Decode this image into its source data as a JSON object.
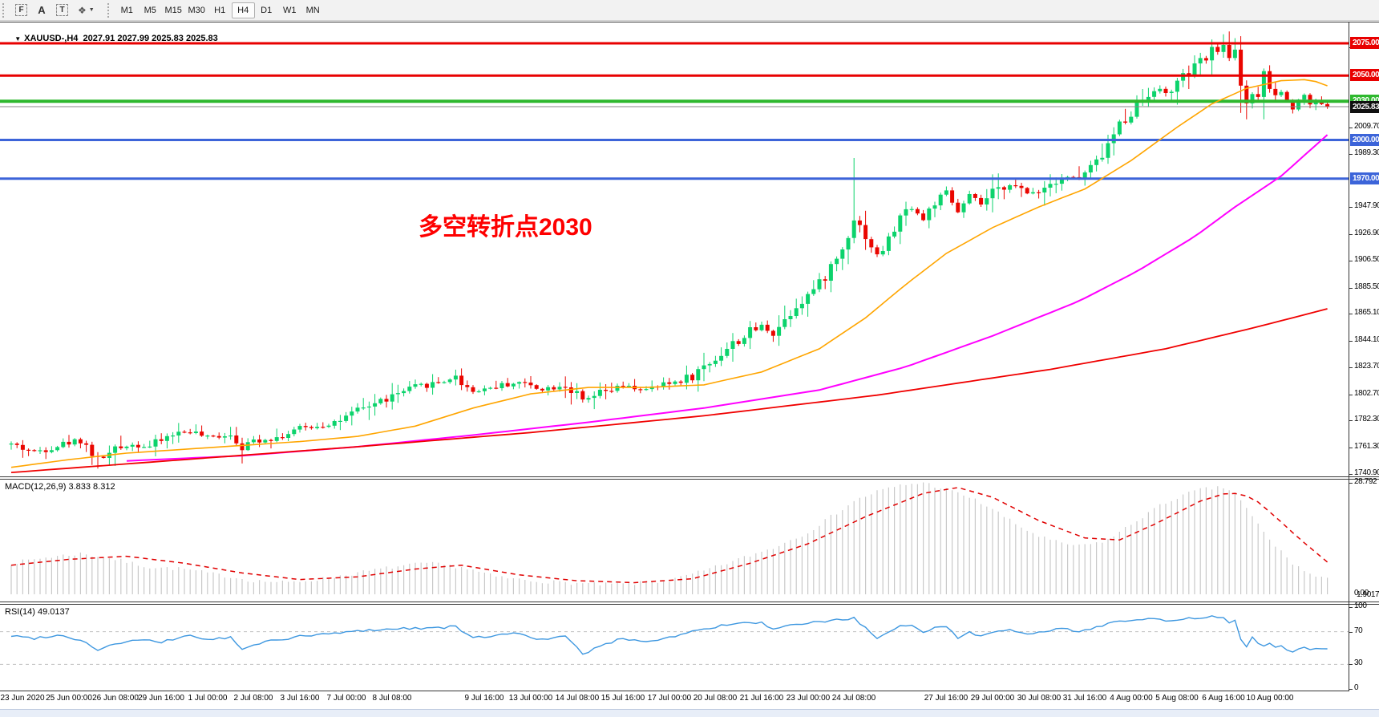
{
  "toolbar": {
    "tools": {
      "f": "F",
      "a": "A",
      "t": "T",
      "shapes": "❖",
      "caret": "▼"
    },
    "timeframes": [
      "M1",
      "M5",
      "M15",
      "M30",
      "H1",
      "H4",
      "D1",
      "W1",
      "MN"
    ],
    "active_timeframe": "H4"
  },
  "header": {
    "caret": "▼",
    "symbol": "XAUUSD-,H4",
    "ohlc": "2027.91 2027.99 2025.83 2025.83"
  },
  "annotation": {
    "text": "多空转折点2030",
    "color": "#fe0000"
  },
  "indicators": {
    "macd_label": "MACD(12,26,9) 3.833 8.312",
    "rsi_label": "RSI(14) 49.0137"
  },
  "chart_data": {
    "type": "candlestick",
    "symbol": "XAUUSD-",
    "timeframe": "H4",
    "ohlc_display": {
      "open": 2027.91,
      "high": 2027.99,
      "low": 2025.83,
      "close": 2025.83
    },
    "colors": {
      "up": "#0cd36c",
      "down": "#ea0600",
      "ma_fast": "#ffa500",
      "ma_mid": "#ff00ff",
      "ma_slow": "#f00000",
      "level_red": "#e80000",
      "level_green": "#2eb82e",
      "level_blue": "#3c64d9",
      "price_line": "#888888",
      "price_badge": "#101010",
      "macd_hist": "#c9c9c9",
      "macd_signal": "#e00000",
      "rsi_line": "#3d97e0",
      "rsi_grid": "#c0c0c0"
    },
    "levels": [
      {
        "value": 2075.0,
        "label": "2075.00",
        "color": "#e80000",
        "width": 3
      },
      {
        "value": 2050.0,
        "label": "2050.00",
        "color": "#e80000",
        "width": 3
      },
      {
        "value": 2030.0,
        "label": "2030.00",
        "color": "#2eb82e",
        "width": 4
      },
      {
        "value": 2000.0,
        "label": "2000.00",
        "color": "#3c64d9",
        "width": 3
      },
      {
        "value": 1970.0,
        "label": "1970.00",
        "color": "#3c64d9",
        "width": 3
      }
    ],
    "current_price": {
      "value": 2025.83,
      "label": "2025.83"
    },
    "y_ticks": [
      "2072.10",
      "2009.70",
      "1989.30",
      "1947.90",
      "1926.90",
      "1906.50",
      "1885.50",
      "1865.10",
      "1844.10",
      "1823.70",
      "1802.70",
      "1782.30",
      "1761.30",
      "1740.90"
    ],
    "date_labels": [
      [
        0,
        "23 Jun 2020"
      ],
      [
        1,
        "25 Jun 00:00"
      ],
      [
        2,
        "26 Jun 08:00"
      ],
      [
        3,
        "29 Jun 16:00"
      ],
      [
        4,
        "1 Jul 00:00"
      ],
      [
        5,
        "2 Jul 08:00"
      ],
      [
        6,
        "3 Jul 16:00"
      ],
      [
        7,
        "7 Jul 00:00"
      ],
      [
        8,
        "8 Jul 08:00"
      ],
      [
        10,
        "9 Jul 16:00"
      ],
      [
        11,
        "13 Jul 00:00"
      ],
      [
        12,
        "14 Jul 08:00"
      ],
      [
        13,
        "15 Jul 16:00"
      ],
      [
        14,
        "17 Jul 00:00"
      ],
      [
        15,
        "20 Jul 08:00"
      ],
      [
        16,
        "21 Jul 16:00"
      ],
      [
        17,
        "23 Jul 00:00"
      ],
      [
        18,
        "24 Jul 08:00"
      ],
      [
        20,
        "27 Jul 16:00"
      ],
      [
        21,
        "29 Jul 00:00"
      ],
      [
        22,
        "30 Jul 08:00"
      ],
      [
        23,
        "31 Jul 16:00"
      ],
      [
        24,
        "4 Aug 00:00"
      ],
      [
        25,
        "5 Aug 08:00"
      ],
      [
        26,
        "6 Aug 16:00"
      ],
      [
        27,
        "10 Aug 00:00"
      ]
    ],
    "price_anchors": [
      [
        0,
        1764
      ],
      [
        4,
        1758
      ],
      [
        8,
        1763
      ],
      [
        12,
        1768
      ],
      [
        15,
        1752
      ],
      [
        17,
        1756
      ],
      [
        20,
        1764
      ],
      [
        24,
        1762
      ],
      [
        28,
        1772
      ],
      [
        31,
        1774
      ],
      [
        34,
        1769
      ],
      [
        38,
        1772
      ],
      [
        40,
        1762
      ],
      [
        42,
        1767
      ],
      [
        46,
        1769
      ],
      [
        50,
        1776
      ],
      [
        54,
        1779
      ],
      [
        58,
        1784
      ],
      [
        62,
        1794
      ],
      [
        66,
        1801
      ],
      [
        70,
        1808
      ],
      [
        74,
        1812
      ],
      [
        77,
        1816
      ],
      [
        80,
        1805
      ],
      [
        84,
        1809
      ],
      [
        88,
        1812
      ],
      [
        92,
        1807
      ],
      [
        96,
        1810
      ],
      [
        99,
        1797
      ],
      [
        102,
        1803
      ],
      [
        106,
        1809
      ],
      [
        110,
        1806
      ],
      [
        114,
        1811
      ],
      [
        118,
        1817
      ],
      [
        122,
        1831
      ],
      [
        126,
        1845
      ],
      [
        130,
        1856
      ],
      [
        132,
        1850
      ],
      [
        136,
        1872
      ],
      [
        140,
        1888
      ],
      [
        144,
        1915
      ],
      [
        146,
        1940
      ],
      [
        148,
        1926
      ],
      [
        150,
        1910
      ],
      [
        152,
        1922
      ],
      [
        154,
        1940
      ],
      [
        156,
        1948
      ],
      [
        158,
        1938
      ],
      [
        160,
        1952
      ],
      [
        162,
        1958
      ],
      [
        164,
        1944
      ],
      [
        166,
        1956
      ],
      [
        168,
        1950
      ],
      [
        170,
        1958
      ],
      [
        173,
        1966
      ],
      [
        176,
        1958
      ],
      [
        179,
        1964
      ],
      [
        182,
        1972
      ],
      [
        185,
        1970
      ],
      [
        188,
        1982
      ],
      [
        190,
        1996
      ],
      [
        192,
        2012
      ],
      [
        194,
        2022
      ],
      [
        196,
        2032
      ],
      [
        198,
        2040
      ],
      [
        200,
        2036
      ],
      [
        202,
        2044
      ],
      [
        204,
        2052
      ],
      [
        206,
        2060
      ],
      [
        208,
        2068
      ],
      [
        210,
        2072
      ],
      [
        211,
        2066
      ],
      [
        212,
        2070
      ],
      [
        213,
        2044
      ],
      [
        214,
        2030
      ],
      [
        215,
        2036
      ],
      [
        216,
        2030
      ],
      [
        217,
        2052
      ],
      [
        218,
        2040
      ],
      [
        219,
        2034
      ],
      [
        220,
        2038
      ],
      [
        221,
        2030
      ],
      [
        222,
        2026
      ],
      [
        223,
        2032
      ],
      [
        224,
        2034
      ],
      [
        225,
        2029
      ],
      [
        226,
        2031
      ],
      [
        227,
        2028
      ],
      [
        228,
        2025.83
      ]
    ],
    "wick_overrides": {
      "15": {
        "low": 1745
      },
      "40": {
        "low": 1749
      },
      "146": {
        "high": 1986
      },
      "208": {
        "high": 2078
      },
      "210": {
        "high": 2082
      },
      "212": {
        "high": 2079
      },
      "213": {
        "low": 2021
      },
      "214": {
        "low": 2016
      },
      "217": {
        "low": 2016
      }
    },
    "ma_series": [
      {
        "name": "ma-fast-orange",
        "color": "#ffa500",
        "width": 1.6,
        "anchors": [
          [
            0,
            1746
          ],
          [
            10,
            1752
          ],
          [
            20,
            1757
          ],
          [
            30,
            1760
          ],
          [
            40,
            1763
          ],
          [
            50,
            1766
          ],
          [
            60,
            1770
          ],
          [
            70,
            1778
          ],
          [
            80,
            1792
          ],
          [
            90,
            1803
          ],
          [
            100,
            1808
          ],
          [
            110,
            1808
          ],
          [
            120,
            1810
          ],
          [
            130,
            1820
          ],
          [
            140,
            1838
          ],
          [
            148,
            1862
          ],
          [
            155,
            1888
          ],
          [
            162,
            1912
          ],
          [
            170,
            1932
          ],
          [
            178,
            1948
          ],
          [
            186,
            1962
          ],
          [
            194,
            1984
          ],
          [
            202,
            2010
          ],
          [
            208,
            2028
          ],
          [
            214,
            2040
          ],
          [
            220,
            2046
          ],
          [
            225,
            2047
          ],
          [
            228,
            2042
          ]
        ]
      },
      {
        "name": "ma-mid-magenta",
        "color": "#ff00ff",
        "width": 2,
        "anchors": [
          [
            20,
            1751
          ],
          [
            40,
            1755
          ],
          [
            60,
            1762
          ],
          [
            80,
            1771
          ],
          [
            100,
            1781
          ],
          [
            120,
            1792
          ],
          [
            140,
            1806
          ],
          [
            155,
            1824
          ],
          [
            170,
            1848
          ],
          [
            185,
            1875
          ],
          [
            195,
            1898
          ],
          [
            205,
            1925
          ],
          [
            212,
            1948
          ],
          [
            220,
            1972
          ],
          [
            228,
            2004
          ]
        ]
      },
      {
        "name": "ma-slow-red",
        "color": "#f00000",
        "width": 1.8,
        "anchors": [
          [
            0,
            1742
          ],
          [
            30,
            1752
          ],
          [
            60,
            1762
          ],
          [
            90,
            1773
          ],
          [
            120,
            1786
          ],
          [
            150,
            1802
          ],
          [
            180,
            1822
          ],
          [
            200,
            1838
          ],
          [
            215,
            1854
          ],
          [
            228,
            1869
          ]
        ]
      }
    ],
    "macd": {
      "label": "MACD(12,26,9)",
      "values": "3.833 8.312",
      "axis_max": "28.792",
      "axis_zero": "0.00",
      "axis_overlap": "1.9017",
      "hist_anchors": [
        [
          0,
          8
        ],
        [
          6,
          9.5
        ],
        [
          12,
          10.5
        ],
        [
          18,
          9
        ],
        [
          24,
          7
        ],
        [
          30,
          6.5
        ],
        [
          36,
          5
        ],
        [
          42,
          3.5
        ],
        [
          48,
          3
        ],
        [
          54,
          4
        ],
        [
          60,
          5.5
        ],
        [
          66,
          7
        ],
        [
          72,
          8
        ],
        [
          78,
          7
        ],
        [
          84,
          4.5
        ],
        [
          90,
          3.5
        ],
        [
          96,
          3
        ],
        [
          102,
          2.5
        ],
        [
          108,
          2.8
        ],
        [
          114,
          3.5
        ],
        [
          120,
          6
        ],
        [
          126,
          9
        ],
        [
          132,
          12
        ],
        [
          138,
          16
        ],
        [
          142,
          20
        ],
        [
          146,
          24
        ],
        [
          150,
          26.5
        ],
        [
          154,
          28
        ],
        [
          158,
          28.8
        ],
        [
          162,
          27
        ],
        [
          166,
          25
        ],
        [
          170,
          22
        ],
        [
          174,
          18
        ],
        [
          178,
          15
        ],
        [
          182,
          13
        ],
        [
          186,
          12.5
        ],
        [
          190,
          14
        ],
        [
          194,
          18
        ],
        [
          198,
          22
        ],
        [
          202,
          25
        ],
        [
          206,
          27
        ],
        [
          210,
          27.5
        ],
        [
          212,
          26
        ],
        [
          214,
          22
        ],
        [
          216,
          18
        ],
        [
          218,
          14
        ],
        [
          220,
          11
        ],
        [
          222,
          8
        ],
        [
          224,
          6
        ],
        [
          226,
          4.5
        ],
        [
          228,
          3.83
        ]
      ],
      "signal_anchors": [
        [
          0,
          7.5
        ],
        [
          10,
          9
        ],
        [
          20,
          9.8
        ],
        [
          30,
          8
        ],
        [
          40,
          5.5
        ],
        [
          50,
          3.8
        ],
        [
          60,
          4.5
        ],
        [
          70,
          6.5
        ],
        [
          78,
          7.5
        ],
        [
          88,
          5
        ],
        [
          98,
          3.5
        ],
        [
          108,
          3
        ],
        [
          118,
          4
        ],
        [
          128,
          8
        ],
        [
          138,
          13
        ],
        [
          148,
          20
        ],
        [
          158,
          26
        ],
        [
          164,
          27.5
        ],
        [
          170,
          25
        ],
        [
          178,
          19
        ],
        [
          186,
          14.5
        ],
        [
          192,
          14
        ],
        [
          198,
          18
        ],
        [
          206,
          24
        ],
        [
          211,
          26.3
        ],
        [
          215,
          25
        ],
        [
          219,
          20
        ],
        [
          223,
          14.5
        ],
        [
          228,
          8.31
        ]
      ]
    },
    "rsi": {
      "label": "RSI(14)",
      "value": "49.0137",
      "axis": [
        "100",
        "70",
        "30",
        "0"
      ],
      "grid_levels": [
        70,
        30
      ],
      "anchors": [
        [
          0,
          65
        ],
        [
          4,
          62
        ],
        [
          8,
          66
        ],
        [
          12,
          60
        ],
        [
          15,
          48
        ],
        [
          18,
          55
        ],
        [
          22,
          60
        ],
        [
          26,
          57
        ],
        [
          31,
          66
        ],
        [
          34,
          60
        ],
        [
          38,
          63
        ],
        [
          40,
          48
        ],
        [
          44,
          58
        ],
        [
          50,
          64
        ],
        [
          56,
          68
        ],
        [
          62,
          72
        ],
        [
          68,
          74
        ],
        [
          74,
          75
        ],
        [
          77,
          76
        ],
        [
          80,
          62
        ],
        [
          84,
          66
        ],
        [
          88,
          68
        ],
        [
          92,
          60
        ],
        [
          96,
          64
        ],
        [
          99,
          43
        ],
        [
          102,
          52
        ],
        [
          106,
          62
        ],
        [
          110,
          58
        ],
        [
          114,
          63
        ],
        [
          118,
          70
        ],
        [
          122,
          76
        ],
        [
          126,
          80
        ],
        [
          130,
          81
        ],
        [
          132,
          72
        ],
        [
          136,
          79
        ],
        [
          140,
          82
        ],
        [
          144,
          85
        ],
        [
          146,
          87
        ],
        [
          148,
          74
        ],
        [
          150,
          62
        ],
        [
          152,
          68
        ],
        [
          154,
          76
        ],
        [
          156,
          79
        ],
        [
          158,
          70
        ],
        [
          160,
          75
        ],
        [
          162,
          77
        ],
        [
          164,
          62
        ],
        [
          166,
          70
        ],
        [
          168,
          64
        ],
        [
          170,
          70
        ],
        [
          173,
          74
        ],
        [
          176,
          66
        ],
        [
          179,
          70
        ],
        [
          182,
          74
        ],
        [
          185,
          70
        ],
        [
          188,
          76
        ],
        [
          190,
          80
        ],
        [
          192,
          83
        ],
        [
          194,
          84
        ],
        [
          196,
          85
        ],
        [
          198,
          86
        ],
        [
          200,
          82
        ],
        [
          202,
          84
        ],
        [
          204,
          86
        ],
        [
          206,
          87
        ],
        [
          208,
          88
        ],
        [
          210,
          87
        ],
        [
          211,
          80
        ],
        [
          212,
          83
        ],
        [
          213,
          60
        ],
        [
          214,
          50
        ],
        [
          215,
          65
        ],
        [
          216,
          57
        ],
        [
          217,
          52
        ],
        [
          218,
          55
        ],
        [
          219,
          50
        ],
        [
          220,
          53
        ],
        [
          221,
          48
        ],
        [
          222,
          45
        ],
        [
          223,
          50
        ],
        [
          224,
          52
        ],
        [
          225,
          48
        ],
        [
          226,
          50
        ],
        [
          227,
          49
        ],
        [
          228,
          49.01
        ]
      ]
    }
  }
}
